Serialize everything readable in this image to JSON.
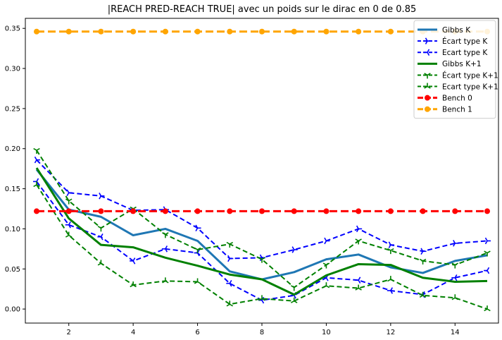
{
  "chart_data": {
    "type": "line",
    "title": "|REACH PRED-REACH TRUE| avec un poids sur le dirac en 0 de 0.85",
    "xlabel": "",
    "ylabel": "",
    "xlim": [
      0.65,
      15.35
    ],
    "ylim": [
      -0.0175,
      0.3625
    ],
    "x_ticks": [
      2,
      4,
      6,
      8,
      10,
      12,
      14
    ],
    "y_ticks": [
      0.0,
      0.05,
      0.1,
      0.15,
      0.2,
      0.25,
      0.3,
      0.35
    ],
    "y_tick_labels": [
      "0.00",
      "0.05",
      "0.10",
      "0.15",
      "0.20",
      "0.25",
      "0.30",
      "0.35"
    ],
    "grid": false,
    "legend_position": "top-right",
    "x": [
      1,
      2,
      3,
      4,
      5,
      6,
      7,
      8,
      9,
      10,
      11,
      12,
      13,
      14,
      15
    ],
    "series": [
      {
        "name": "Gibbs K",
        "color": "#1f77b4",
        "style": "solid",
        "width": 3,
        "marker": "none",
        "values": [
          0.174,
          0.124,
          0.115,
          0.092,
          0.1,
          0.085,
          0.047,
          0.037,
          0.046,
          0.062,
          0.068,
          0.052,
          0.045,
          0.06,
          0.067
        ]
      },
      {
        "name": "Écart type K",
        "color": "#0000ff",
        "style": "dashed",
        "width": 2,
        "marker": "tri-right",
        "values": [
          0.186,
          0.145,
          0.141,
          0.123,
          0.124,
          0.101,
          0.063,
          0.064,
          0.074,
          0.085,
          0.1,
          0.08,
          0.072,
          0.082,
          0.085
        ]
      },
      {
        "name": "Ecart type K",
        "color": "#0000ff",
        "style": "dashed",
        "width": 2,
        "marker": "tri-left",
        "values": [
          0.159,
          0.105,
          0.09,
          0.06,
          0.075,
          0.07,
          0.032,
          0.011,
          0.017,
          0.039,
          0.036,
          0.023,
          0.018,
          0.039,
          0.048
        ]
      },
      {
        "name": "Gibbs K+1",
        "color": "#008000",
        "style": "solid",
        "width": 3,
        "marker": "none",
        "values": [
          0.176,
          0.113,
          0.08,
          0.077,
          0.064,
          0.054,
          0.043,
          0.037,
          0.018,
          0.042,
          0.056,
          0.055,
          0.039,
          0.034,
          0.035
        ]
      },
      {
        "name": "Écart type K+1",
        "color": "#008000",
        "style": "dashed",
        "width": 2,
        "marker": "tri-down",
        "values": [
          0.198,
          0.135,
          0.101,
          0.125,
          0.093,
          0.074,
          0.081,
          0.062,
          0.027,
          0.055,
          0.085,
          0.073,
          0.06,
          0.055,
          0.07
        ]
      },
      {
        "name": "Ecart type K+1",
        "color": "#008000",
        "style": "dashed",
        "width": 2,
        "marker": "tri-up",
        "values": [
          0.155,
          0.092,
          0.057,
          0.03,
          0.035,
          0.034,
          0.006,
          0.013,
          0.01,
          0.029,
          0.026,
          0.037,
          0.017,
          0.014,
          0.0
        ]
      },
      {
        "name": "Bench 0",
        "color": "#ff0000",
        "style": "dashed",
        "width": 3,
        "marker": "circle",
        "values": [
          0.122,
          0.122,
          0.122,
          0.122,
          0.122,
          0.122,
          0.122,
          0.122,
          0.122,
          0.122,
          0.122,
          0.122,
          0.122,
          0.122,
          0.122
        ]
      },
      {
        "name": "Bench 1",
        "color": "#ffa500",
        "style": "dashed",
        "width": 3,
        "marker": "circle",
        "values": [
          0.346,
          0.346,
          0.346,
          0.346,
          0.346,
          0.346,
          0.346,
          0.346,
          0.346,
          0.346,
          0.346,
          0.346,
          0.346,
          0.346,
          0.346
        ]
      }
    ]
  }
}
